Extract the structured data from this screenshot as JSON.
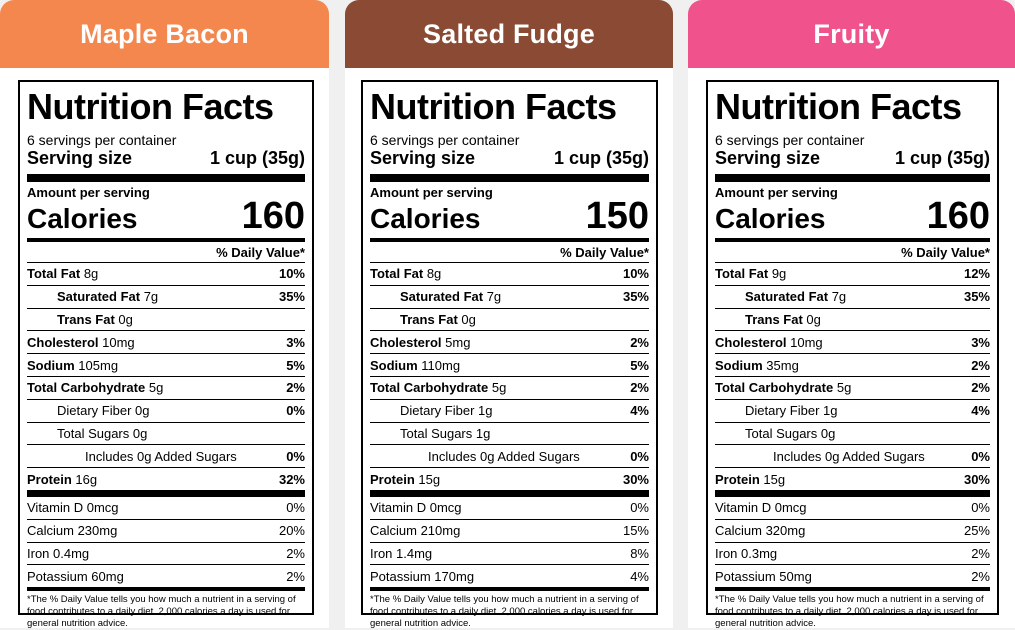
{
  "colors": {
    "maple": "#f4874d",
    "fudge": "#8a4a33",
    "fruity": "#f0528b"
  },
  "labels": [
    {
      "flavor": "Maple Bacon",
      "title": "Nutrition Facts",
      "servings": "6 servings per container",
      "serving_size_label": "Serving size",
      "serving_size_value": "1 cup (35g)",
      "amount_per_serving": "Amount per serving",
      "calories_label": "Calories",
      "calories": "160",
      "dv_header": "% Daily Value*",
      "nutrients": [
        {
          "name": "Total Fat",
          "amount": "8g",
          "dv": "10%"
        },
        {
          "name": "Saturated Fat",
          "amount": "7g",
          "dv": "35%"
        },
        {
          "name": "Trans Fat",
          "amount": "0g",
          "dv": ""
        },
        {
          "name": "Cholesterol",
          "amount": "10mg",
          "dv": "3%"
        },
        {
          "name": "Sodium",
          "amount": "105mg",
          "dv": "5%"
        },
        {
          "name": "Total Carbohydrate",
          "amount": "5g",
          "dv": "2%"
        },
        {
          "name": "Dietary Fiber",
          "amount": "0g",
          "dv": "0%"
        },
        {
          "name": "Total Sugars",
          "amount": "0g",
          "dv": ""
        },
        {
          "name": "Includes 0g Added Sugars",
          "amount": "",
          "dv": "0%"
        },
        {
          "name": "Protein",
          "amount": "16g",
          "dv": "32%"
        }
      ],
      "vitamins": [
        {
          "text": "Vitamin D 0mcg",
          "dv": "0%"
        },
        {
          "text": "Calcium 230mg",
          "dv": "20%"
        },
        {
          "text": "Iron 0.4mg",
          "dv": "2%"
        },
        {
          "text": "Potassium 60mg",
          "dv": "2%"
        }
      ],
      "footnote": "*The % Daily Value tells you how much a nutrient in a serving of food contributes to a daily diet. 2,000 calories a day is used for general nutrition advice."
    },
    {
      "flavor": "Salted Fudge",
      "title": "Nutrition Facts",
      "servings": "6 servings per container",
      "serving_size_label": "Serving size",
      "serving_size_value": "1 cup (35g)",
      "amount_per_serving": "Amount per serving",
      "calories_label": "Calories",
      "calories": "150",
      "dv_header": "% Daily Value*",
      "nutrients": [
        {
          "name": "Total Fat",
          "amount": "8g",
          "dv": "10%"
        },
        {
          "name": "Saturated Fat",
          "amount": "7g",
          "dv": "35%"
        },
        {
          "name": "Trans Fat",
          "amount": "0g",
          "dv": ""
        },
        {
          "name": "Cholesterol",
          "amount": "5mg",
          "dv": "2%"
        },
        {
          "name": "Sodium",
          "amount": "110mg",
          "dv": "5%"
        },
        {
          "name": "Total Carbohydrate",
          "amount": "5g",
          "dv": "2%"
        },
        {
          "name": "Dietary Fiber",
          "amount": "1g",
          "dv": "4%"
        },
        {
          "name": "Total Sugars",
          "amount": "1g",
          "dv": ""
        },
        {
          "name": "Includes 0g Added Sugars",
          "amount": "",
          "dv": "0%"
        },
        {
          "name": "Protein",
          "amount": "15g",
          "dv": "30%"
        }
      ],
      "vitamins": [
        {
          "text": "Vitamin D 0mcg",
          "dv": "0%"
        },
        {
          "text": "Calcium 210mg",
          "dv": "15%"
        },
        {
          "text": "Iron 1.4mg",
          "dv": "8%"
        },
        {
          "text": "Potassium 170mg",
          "dv": "4%"
        }
      ],
      "footnote": "*The % Daily Value tells you how much a nutrient in a serving of food contributes to a daily diet. 2,000 calories a day is used for general nutrition advice."
    },
    {
      "flavor": "Fruity",
      "title": "Nutrition Facts",
      "servings": "6 servings per container",
      "serving_size_label": "Serving size",
      "serving_size_value": "1 cup (35g)",
      "amount_per_serving": "Amount per serving",
      "calories_label": "Calories",
      "calories": "160",
      "dv_header": "% Daily Value*",
      "nutrients": [
        {
          "name": "Total Fat",
          "amount": "9g",
          "dv": "12%"
        },
        {
          "name": "Saturated Fat",
          "amount": "7g",
          "dv": "35%"
        },
        {
          "name": "Trans Fat",
          "amount": "0g",
          "dv": ""
        },
        {
          "name": "Cholesterol",
          "amount": "10mg",
          "dv": "3%"
        },
        {
          "name": "Sodium",
          "amount": "35mg",
          "dv": "2%"
        },
        {
          "name": "Total Carbohydrate",
          "amount": "5g",
          "dv": "2%"
        },
        {
          "name": "Dietary Fiber",
          "amount": "1g",
          "dv": "4%"
        },
        {
          "name": "Total Sugars",
          "amount": "0g",
          "dv": ""
        },
        {
          "name": "Includes 0g Added Sugars",
          "amount": "",
          "dv": "0%"
        },
        {
          "name": "Protein",
          "amount": "15g",
          "dv": "30%"
        }
      ],
      "vitamins": [
        {
          "text": "Vitamin D 0mcg",
          "dv": "0%"
        },
        {
          "text": "Calcium 320mg",
          "dv": "25%"
        },
        {
          "text": "Iron 0.3mg",
          "dv": "2%"
        },
        {
          "text": "Potassium 50mg",
          "dv": "2%"
        }
      ],
      "footnote": "*The % Daily Value tells you how much a nutrient in a serving of food contributes to a daily diet. 2,000 calories a day is used for general nutrition advice."
    }
  ]
}
